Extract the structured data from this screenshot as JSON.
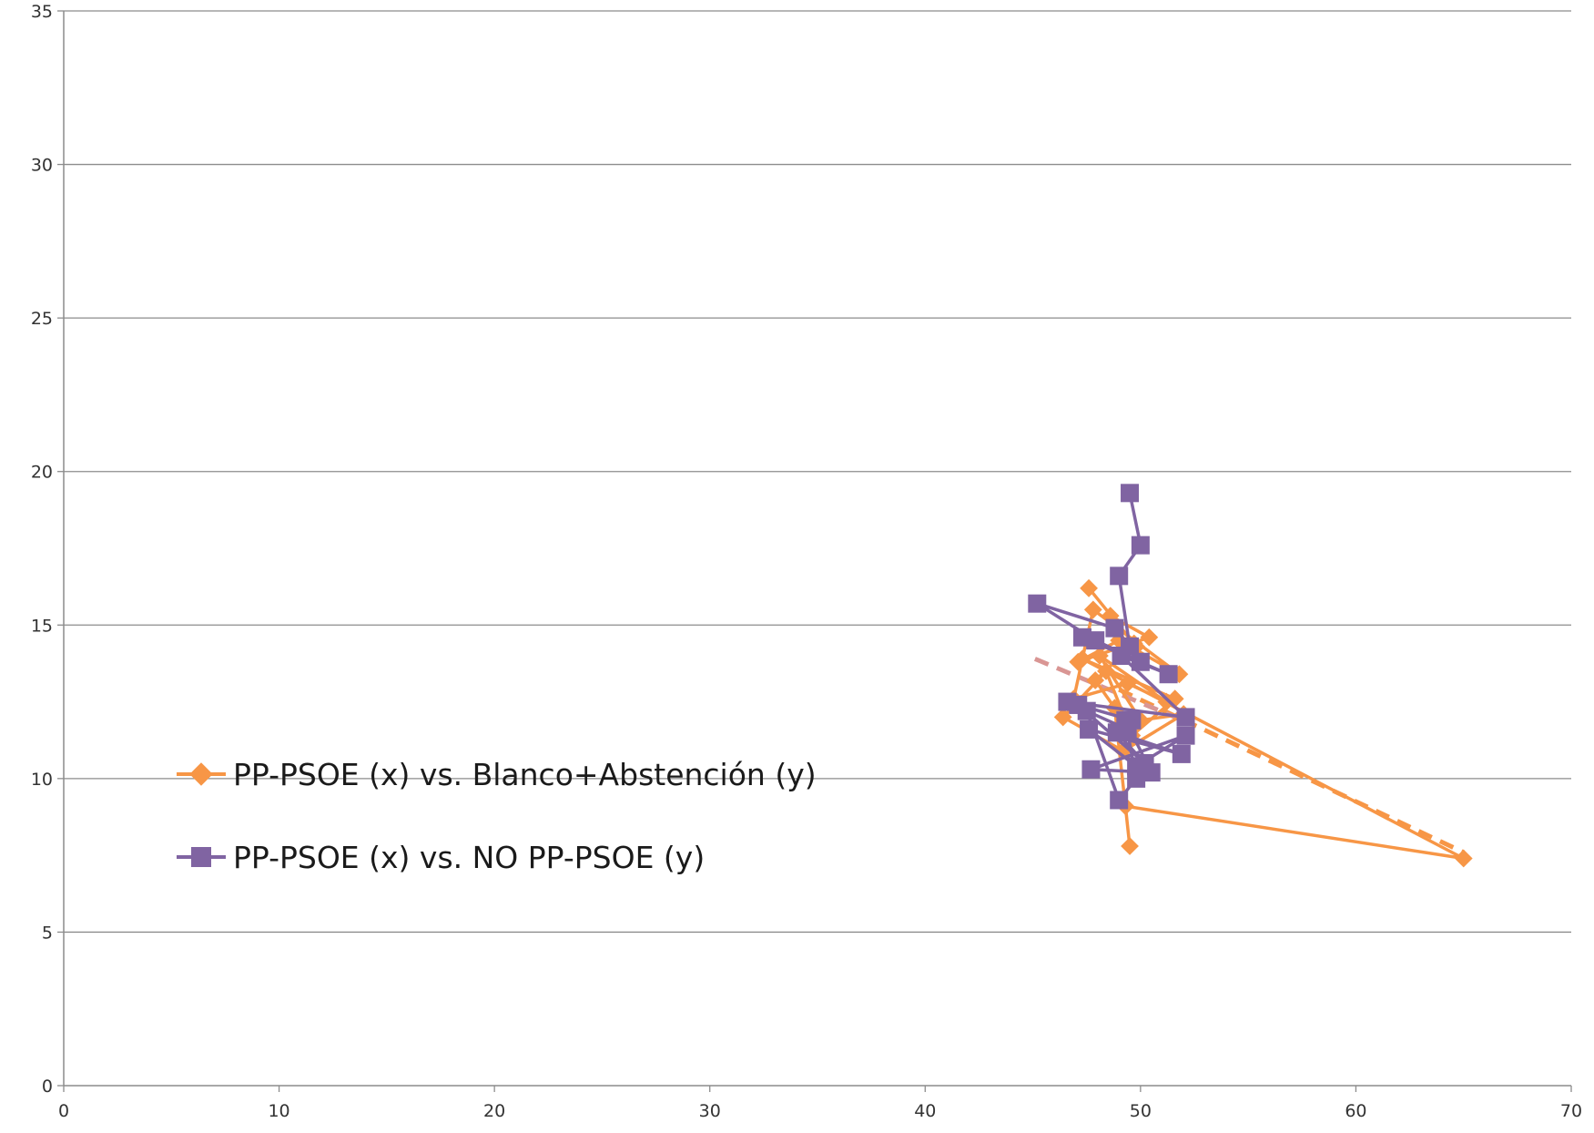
{
  "chart_data": {
    "type": "scatter",
    "title": "",
    "xlabel": "",
    "ylabel": "",
    "xlim": [
      0,
      70
    ],
    "ylim": [
      0,
      35
    ],
    "x_ticks": [
      "0",
      "10",
      "20",
      "30",
      "40",
      "50",
      "60",
      "70"
    ],
    "y_ticks": [
      "0",
      "5",
      "10",
      "15",
      "20",
      "25",
      "30",
      "35"
    ],
    "grid": "horizontal",
    "legend_position": "left-middle",
    "series": [
      {
        "name": "PP-PSOE (x) vs. Blanco+Abstención (y)",
        "color": "#f79646",
        "marker": "diamond",
        "connected": true,
        "x": [
          47.6,
          49.8,
          48.6,
          50.4,
          47.1,
          49.0,
          51.8,
          47.8,
          46.9,
          49.4,
          51.2,
          48.1,
          50.0,
          52.0,
          49.2,
          46.4,
          48.4,
          49.6,
          51.6,
          47.3,
          65.0,
          49.3,
          49.5,
          48.8,
          47.9,
          49.7
        ],
        "y": [
          16.2,
          14.3,
          15.3,
          14.6,
          13.8,
          14.5,
          13.4,
          15.5,
          12.6,
          13.1,
          12.5,
          14.0,
          11.9,
          12.1,
          10.9,
          12.0,
          13.5,
          11.4,
          12.6,
          13.9,
          7.4,
          9.1,
          7.8,
          12.3,
          13.2,
          14.4
        ]
      },
      {
        "name": "PP-PSOE (x) vs. NO PP-PSOE (y)",
        "color": "#8064a2",
        "marker": "square",
        "connected": true,
        "x": [
          49.5,
          50.0,
          49.0,
          49.5,
          48.8,
          45.2,
          47.9,
          50.0,
          47.3,
          51.3,
          49.1,
          52.1,
          46.6,
          49.6,
          47.1,
          50.2,
          48.9,
          51.9,
          47.6,
          49.8,
          52.1,
          47.7,
          50.5,
          49.3,
          49.8,
          49.0,
          47.5,
          49.4
        ],
        "y": [
          19.3,
          17.6,
          16.6,
          14.3,
          14.9,
          15.7,
          14.5,
          13.8,
          14.6,
          13.4,
          14.0,
          12.0,
          12.5,
          11.9,
          12.4,
          10.5,
          11.5,
          10.8,
          11.6,
          10.4,
          11.4,
          10.3,
          10.2,
          11.9,
          10.0,
          9.3,
          12.2,
          11.6
        ]
      },
      {
        "name": "",
        "color": "#f79646",
        "style": "dashed-trendline",
        "x": [
          49.0,
          65.0
        ],
        "y": [
          12.9,
          7.6
        ]
      },
      {
        "name": "",
        "color": "#d99694",
        "style": "dashed-trendline",
        "x": [
          45.1,
          52.3
        ],
        "y": [
          13.9,
          11.8
        ]
      }
    ]
  }
}
